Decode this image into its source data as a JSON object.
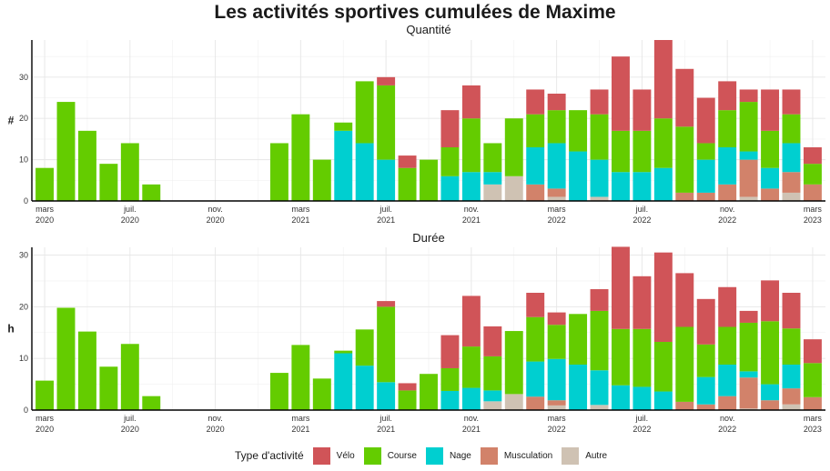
{
  "title": "Les activités sportives cumulées de Maxime",
  "colors": {
    "Vélo": "#d05458",
    "Course": "#64cc00",
    "Nage": "#00cfd0",
    "Musculation": "#d2826a",
    "Autre": "#cfc2b3"
  },
  "legend": {
    "title": "Type d'activité",
    "items": [
      "Vélo",
      "Course",
      "Nage",
      "Musculation",
      "Autre"
    ]
  },
  "x_ticks": [
    {
      "line1": "mars",
      "line2": "2020"
    },
    {
      "line1": "juil.",
      "line2": "2020"
    },
    {
      "line1": "nov.",
      "line2": "2020"
    },
    {
      "line1": "mars",
      "line2": "2021"
    },
    {
      "line1": "juil.",
      "line2": "2021"
    },
    {
      "line1": "nov.",
      "line2": "2021"
    },
    {
      "line1": "mars",
      "line2": "2022"
    },
    {
      "line1": "juil.",
      "line2": "2022"
    },
    {
      "line1": "nov.",
      "line2": "2022"
    },
    {
      "line1": "mars",
      "line2": "2023"
    }
  ],
  "chart_data": [
    {
      "type": "bar",
      "stacked": true,
      "title": "Quantité",
      "ylabel": "#",
      "ylim": [
        0,
        39
      ],
      "yticks": [
        0,
        10,
        20,
        30
      ],
      "grid": true,
      "categories": [
        "2020-03",
        "2020-04",
        "2020-05",
        "2020-06",
        "2020-07",
        "2020-08",
        "2020-09",
        "2020-10",
        "2020-11",
        "2020-12",
        "2021-01",
        "2021-02",
        "2021-03",
        "2021-04",
        "2021-05",
        "2021-06",
        "2021-07",
        "2021-08",
        "2021-09",
        "2021-10",
        "2021-11",
        "2021-12",
        "2022-01",
        "2022-02",
        "2022-03",
        "2022-04",
        "2022-05",
        "2022-06",
        "2022-07",
        "2022-08",
        "2022-09",
        "2022-10",
        "2022-11",
        "2022-12",
        "2023-01",
        "2023-02",
        "2023-03"
      ],
      "series": [
        {
          "name": "Autre",
          "values": [
            0,
            0,
            0,
            0,
            0,
            0,
            0,
            0,
            0,
            0,
            0,
            0,
            0,
            0,
            0,
            0,
            0,
            0,
            0,
            0,
            0,
            4,
            6,
            0,
            1,
            0,
            1,
            0,
            0,
            0,
            0,
            0,
            0,
            1,
            0,
            2,
            0
          ]
        },
        {
          "name": "Musculation",
          "values": [
            0,
            0,
            0,
            0,
            0,
            0,
            0,
            0,
            0,
            0,
            0,
            0,
            0,
            0,
            0,
            0,
            0,
            0,
            0,
            0,
            0,
            0,
            0,
            4,
            2,
            0,
            0,
            0,
            0,
            0,
            2,
            2,
            4,
            9,
            3,
            5,
            4
          ]
        },
        {
          "name": "Nage",
          "values": [
            0,
            0,
            0,
            0,
            0,
            0,
            0,
            0,
            0,
            0,
            0,
            0,
            0,
            0,
            17,
            14,
            10,
            0,
            0,
            6,
            7,
            3,
            0,
            9,
            11,
            12,
            9,
            7,
            7,
            8,
            0,
            8,
            9,
            2,
            5,
            7,
            0
          ]
        },
        {
          "name": "Course",
          "values": [
            8,
            24,
            17,
            9,
            14,
            4,
            0,
            0,
            0,
            0,
            0,
            14,
            21,
            10,
            2,
            15,
            18,
            8,
            10,
            7,
            13,
            7,
            14,
            8,
            8,
            10,
            11,
            10,
            10,
            12,
            16,
            4,
            9,
            12,
            9,
            7,
            5
          ]
        },
        {
          "name": "Vélo",
          "values": [
            0,
            0,
            0,
            0,
            0,
            0,
            0,
            0,
            0,
            0,
            0,
            0,
            0,
            0,
            0,
            0,
            2,
            3,
            0,
            9,
            8,
            0,
            0,
            6,
            4,
            0,
            6,
            18,
            10,
            19,
            14,
            11,
            7,
            3,
            10,
            6,
            4
          ]
        }
      ]
    },
    {
      "type": "bar",
      "stacked": true,
      "title": "Durée",
      "ylabel": "h",
      "ylim": [
        0,
        31.5
      ],
      "yticks": [
        0,
        10,
        20,
        30
      ],
      "grid": true,
      "categories": [
        "2020-03",
        "2020-04",
        "2020-05",
        "2020-06",
        "2020-07",
        "2020-08",
        "2020-09",
        "2020-10",
        "2020-11",
        "2020-12",
        "2021-01",
        "2021-02",
        "2021-03",
        "2021-04",
        "2021-05",
        "2021-06",
        "2021-07",
        "2021-08",
        "2021-09",
        "2021-10",
        "2021-11",
        "2021-12",
        "2022-01",
        "2022-02",
        "2022-03",
        "2022-04",
        "2022-05",
        "2022-06",
        "2022-07",
        "2022-08",
        "2022-09",
        "2022-10",
        "2022-11",
        "2022-12",
        "2023-01",
        "2023-02",
        "2023-03"
      ],
      "series": [
        {
          "name": "Autre",
          "values": [
            0,
            0,
            0,
            0,
            0,
            0,
            0,
            0,
            0,
            0,
            0,
            0,
            0,
            0,
            0,
            0,
            0,
            0,
            0,
            0,
            0,
            1.7,
            3.1,
            0,
            0.9,
            0,
            1.0,
            0,
            0,
            0,
            0,
            0,
            0,
            0.3,
            0,
            1.1,
            0
          ]
        },
        {
          "name": "Musculation",
          "values": [
            0,
            0,
            0,
            0,
            0,
            0,
            0,
            0,
            0,
            0,
            0,
            0,
            0,
            0,
            0,
            0,
            0,
            0,
            0,
            0,
            0,
            0,
            0,
            2.6,
            1.0,
            0,
            0,
            0,
            0,
            0,
            1.6,
            1.1,
            2.7,
            6.0,
            1.9,
            3.1,
            2.5
          ]
        },
        {
          "name": "Nage",
          "values": [
            0,
            0,
            0,
            0,
            0,
            0,
            0,
            0,
            0,
            0,
            0,
            0,
            0,
            0,
            11.0,
            8.6,
            5.4,
            0,
            0,
            3.7,
            4.3,
            2.1,
            0,
            6.8,
            8.0,
            8.8,
            6.7,
            4.8,
            4.5,
            3.6,
            0,
            5.3,
            6.1,
            1.2,
            3.1,
            4.6,
            0
          ]
        },
        {
          "name": "Course",
          "values": [
            5.7,
            19.8,
            15.2,
            8.4,
            12.8,
            2.7,
            0,
            0,
            0,
            0,
            0,
            7.2,
            12.6,
            6.1,
            0.5,
            7.0,
            14.6,
            3.8,
            7.0,
            4.4,
            8.0,
            6.6,
            12.2,
            8.6,
            6.6,
            9.8,
            11.5,
            10.9,
            11.2,
            9.6,
            14.5,
            6.3,
            7.3,
            9.4,
            12.2,
            7.0,
            6.6
          ]
        },
        {
          "name": "Vélo",
          "values": [
            0,
            0,
            0,
            0,
            0,
            0,
            0,
            0,
            0,
            0,
            0,
            0,
            0,
            0,
            0,
            0,
            1.1,
            1.4,
            0,
            6.4,
            9.8,
            5.8,
            0,
            4.7,
            2.4,
            0,
            4.2,
            15.9,
            10.2,
            17.3,
            10.4,
            8.8,
            7.7,
            2.3,
            7.9,
            6.9,
            4.6
          ]
        }
      ]
    }
  ]
}
